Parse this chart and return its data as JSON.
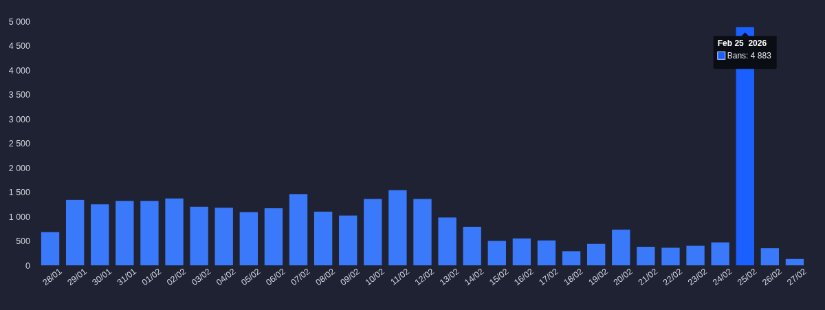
{
  "chart_data": {
    "type": "bar",
    "categories": [
      "28/01",
      "29/01",
      "30/01",
      "31/01",
      "01/02",
      "02/02",
      "03/02",
      "04/02",
      "05/02",
      "06/02",
      "07/02",
      "08/02",
      "09/02",
      "10/02",
      "11/02",
      "12/02",
      "13/02",
      "14/02",
      "15/02",
      "16/02",
      "17/02",
      "18/02",
      "19/02",
      "20/02",
      "21/02",
      "22/02",
      "23/02",
      "24/02",
      "25/02",
      "26/02",
      "27/02"
    ],
    "values": [
      680,
      1340,
      1250,
      1320,
      1320,
      1370,
      1200,
      1180,
      1090,
      1170,
      1460,
      1100,
      1020,
      1360,
      1540,
      1360,
      980,
      790,
      500,
      550,
      510,
      290,
      440,
      730,
      380,
      360,
      400,
      470,
      4883,
      350,
      130
    ],
    "colors": [
      "#3b79fb",
      "#3b79fb",
      "#3b79fb",
      "#3b79fb",
      "#3b79fb",
      "#3b79fb",
      "#3b79fb",
      "#3b79fb",
      "#3b79fb",
      "#3b79fb",
      "#3b79fb",
      "#3b79fb",
      "#3b79fb",
      "#3b79fb",
      "#3b79fb",
      "#3b79fb",
      "#3b79fb",
      "#3b79fb",
      "#3b79fb",
      "#3b79fb",
      "#3b79fb",
      "#3b79fb",
      "#3b79fb",
      "#3b79fb",
      "#3b79fb",
      "#3b79fb",
      "#3b79fb",
      "#3b79fb",
      "#1a5fff",
      "#3b79fb",
      "#3b79fb"
    ],
    "ylim": [
      0,
      5000
    ],
    "yticks": [
      0,
      500,
      {
        "value": 1000,
        "label": "1 000"
      },
      {
        "value": 1500,
        "label": "1 500"
      },
      {
        "value": 2000,
        "label": "2 000"
      },
      {
        "value": 2500,
        "label": "2 500"
      },
      {
        "value": 3000,
        "label": "3 000"
      },
      {
        "value": 3500,
        "label": "3 500"
      },
      {
        "value": 4000,
        "label": "4 000"
      },
      {
        "value": 4500,
        "label": "4 500"
      },
      {
        "value": 5000,
        "label": "5 000"
      }
    ],
    "annotations": [
      {
        "text": "Feb 25  2026",
        "x": "25/02",
        "y": 4883
      },
      {
        "text": "Bans: 4 883",
        "x": "25/02",
        "y": 4883
      }
    ]
  }
}
